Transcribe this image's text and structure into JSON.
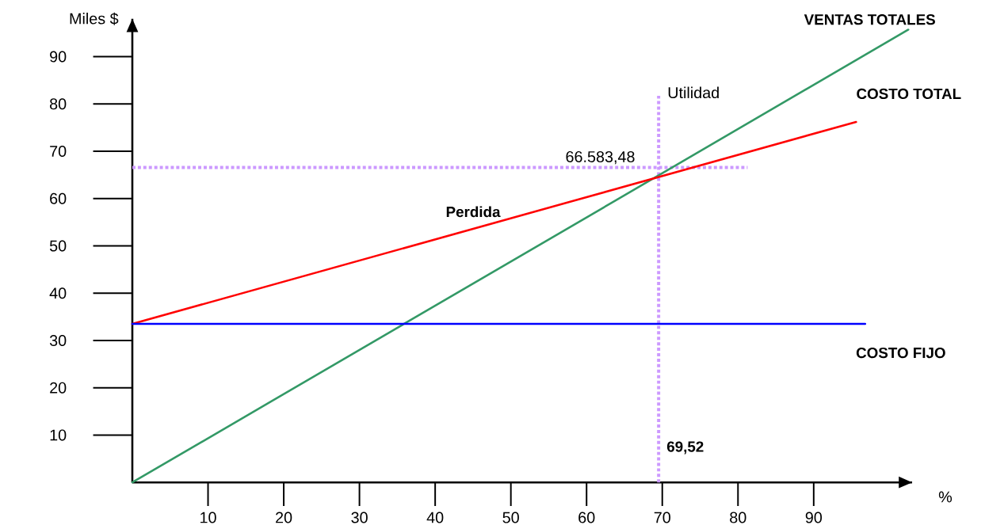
{
  "chart_data": {
    "type": "line",
    "xlabel": "%",
    "ylabel": "Miles $",
    "xlim": [
      0,
      103
    ],
    "ylim": [
      0,
      98
    ],
    "xticks": [
      10,
      20,
      30,
      40,
      50,
      60,
      70,
      80,
      90
    ],
    "yticks": [
      10,
      20,
      30,
      40,
      50,
      60,
      70,
      80,
      90
    ],
    "series": [
      {
        "name": "VENTAS TOTALES",
        "color": "#339966",
        "x": [
          0,
          102.5
        ],
        "values": [
          0,
          95.7
        ]
      },
      {
        "name": "COSTO TOTAL",
        "color": "#ff0000",
        "x": [
          0,
          95.6
        ],
        "values": [
          33.5,
          76.2
        ]
      },
      {
        "name": "COSTO FIJO",
        "color": "#0000ff",
        "x": [
          0,
          96.8
        ],
        "values": [
          33.5,
          33.5
        ]
      }
    ],
    "ref_lines": [
      {
        "axis": "x",
        "value": 69.52,
        "label": "69,52",
        "color": "#cc99ff",
        "line_style": "dotted"
      },
      {
        "axis": "y",
        "value": 66.58348,
        "label": "66.583,48",
        "color": "#cc99ff",
        "line_style": "dotted"
      }
    ],
    "annotations": [
      "Perdida",
      "Utilidad"
    ],
    "marker": "none",
    "line_style": "solid"
  }
}
